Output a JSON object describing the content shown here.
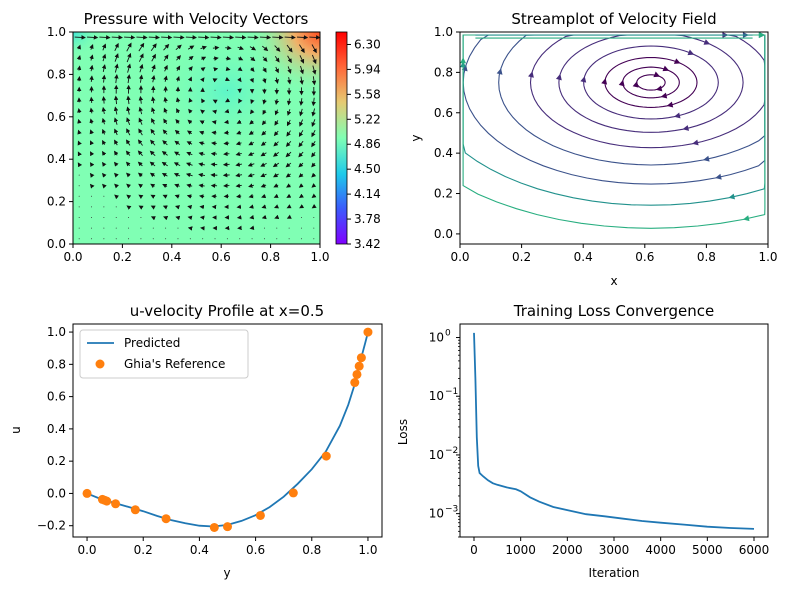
{
  "chart_data": [
    {
      "type": "heatmap",
      "title": "Pressure with Velocity Vectors",
      "xlabel": "",
      "ylabel": "",
      "xlim": [
        0,
        1
      ],
      "ylim": [
        0,
        1
      ],
      "xticks": [
        "0.0",
        "0.2",
        "0.4",
        "0.6",
        "0.8",
        "1.0"
      ],
      "yticks": [
        "0.0",
        "0.2",
        "0.4",
        "0.6",
        "0.8",
        "1.0"
      ],
      "colormap": "rainbow",
      "colorbar": {
        "min": 3.42,
        "max": 6.48,
        "ticks": [
          "3.42",
          "3.78",
          "4.14",
          "4.50",
          "4.86",
          "5.22",
          "5.58",
          "5.94",
          "6.30"
        ]
      },
      "overlay": "velocity quiver arrows",
      "pressure_field": {
        "background": 4.55,
        "corner_top_left": 4.9,
        "corner_top_right": 6.48,
        "vortex_center": [
          0.62,
          0.72
        ],
        "vortex_center_value": 4.62
      }
    },
    {
      "type": "streamplot",
      "title": "Streamplot of Velocity Field",
      "xlabel": "x",
      "ylabel": "y",
      "xlim": [
        0,
        1
      ],
      "ylim": [
        -0.05,
        1
      ],
      "xticks": [
        "0.0",
        "0.2",
        "0.4",
        "0.6",
        "0.8",
        "1.0"
      ],
      "yticks": [
        "0.0",
        "0.2",
        "0.4",
        "0.6",
        "0.8",
        "1.0"
      ],
      "colormap": "viridis",
      "vortex_center": [
        0.62,
        0.75
      ]
    },
    {
      "type": "line",
      "title": "u-velocity Profile at x=0.5",
      "xlabel": "y",
      "ylabel": "u",
      "xlim": [
        -0.05,
        1.05
      ],
      "ylim": [
        -0.27,
        1.05
      ],
      "xticks": [
        "0.0",
        "0.2",
        "0.4",
        "0.6",
        "0.8",
        "1.0"
      ],
      "yticks": [
        "−0.2",
        "0.0",
        "0.2",
        "0.4",
        "0.6",
        "0.8",
        "1.0"
      ],
      "legend_position": "top-left",
      "series": [
        {
          "name": "Predicted",
          "color": "#1f77b4",
          "x": [
            0.0,
            0.05,
            0.1,
            0.15,
            0.2,
            0.25,
            0.3,
            0.35,
            0.4,
            0.45,
            0.5,
            0.55,
            0.6,
            0.65,
            0.7,
            0.75,
            0.8,
            0.85,
            0.9,
            0.93,
            0.95,
            0.97,
            0.99,
            1.0
          ],
          "y": [
            0.0,
            -0.035,
            -0.06,
            -0.085,
            -0.11,
            -0.14,
            -0.165,
            -0.185,
            -0.2,
            -0.205,
            -0.195,
            -0.17,
            -0.135,
            -0.085,
            -0.02,
            0.06,
            0.15,
            0.26,
            0.42,
            0.55,
            0.66,
            0.8,
            0.93,
            1.0
          ]
        },
        {
          "name": "Ghia's Reference",
          "color": "#ff7f0e",
          "marker": "o",
          "x": [
            0.0,
            0.0547,
            0.0625,
            0.0703,
            0.1016,
            0.1719,
            0.2813,
            0.4531,
            0.5,
            0.6172,
            0.7344,
            0.8516,
            0.9531,
            0.9609,
            0.9688,
            0.9766,
            1.0
          ],
          "y": [
            0.0,
            -0.0372,
            -0.0419,
            -0.0477,
            -0.0643,
            -0.1015,
            -0.1566,
            -0.2109,
            -0.2058,
            -0.1364,
            0.0033,
            0.2315,
            0.6872,
            0.7372,
            0.7887,
            0.8412,
            1.0
          ]
        }
      ]
    },
    {
      "type": "line",
      "title": "Training Loss Convergence",
      "xlabel": "Iteration",
      "ylabel": "Loss",
      "yscale": "log",
      "xlim": [
        -300,
        6300
      ],
      "ylim": [
        0.0004,
        1.7
      ],
      "xticks": [
        "0",
        "1000",
        "2000",
        "3000",
        "4000",
        "5000",
        "6000"
      ],
      "yticks": [
        "10",
        "10",
        "10",
        "10"
      ],
      "ytick_exponents": [
        "−3",
        "−2",
        "−1",
        "0"
      ],
      "series": [
        {
          "name": "",
          "color": "#1f77b4",
          "x": [
            0,
            30,
            60,
            90,
            120,
            200,
            300,
            400,
            500,
            700,
            900,
            1000,
            1200,
            1400,
            1700,
            2000,
            2400,
            2800,
            3200,
            3600,
            4000,
            4500,
            5000,
            5500,
            6000
          ],
          "y": [
            1.2,
            0.2,
            0.02,
            0.0065,
            0.0049,
            0.0043,
            0.0037,
            0.0033,
            0.0031,
            0.0028,
            0.0026,
            0.0024,
            0.0019,
            0.0016,
            0.0013,
            0.00115,
            0.00098,
            0.0009,
            0.00082,
            0.00075,
            0.0007,
            0.00065,
            0.0006,
            0.00057,
            0.00055
          ]
        }
      ]
    }
  ]
}
